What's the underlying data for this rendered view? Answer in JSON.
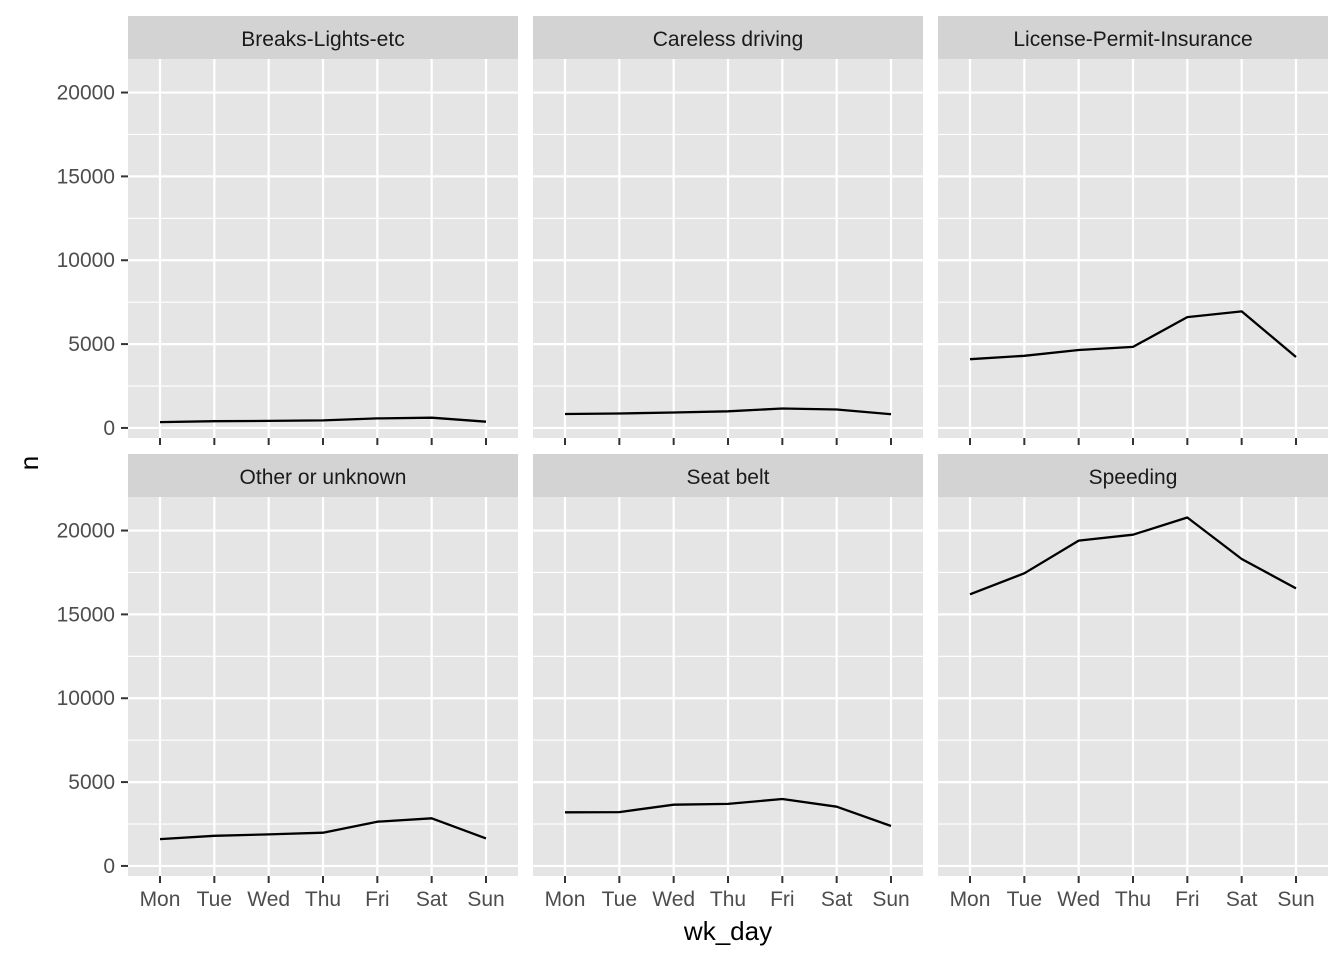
{
  "chart_data": {
    "type": "line",
    "facet": "wrap",
    "xlabel": "wk_day",
    "ylabel": "n",
    "categories": [
      "Mon",
      "Tue",
      "Wed",
      "Thu",
      "Fri",
      "Sat",
      "Sun"
    ],
    "ylim": [
      -600,
      22000
    ],
    "yticks": [
      0,
      5000,
      10000,
      15000,
      20000
    ],
    "yticks_labels": [
      "0",
      "5000",
      "10000",
      "15000",
      "20000"
    ],
    "grid": true,
    "colors": {
      "panel_background": "#e5e5e5",
      "strip_background": "#d3d3d3",
      "grid": "#ffffff",
      "line": "#000000"
    },
    "panels": [
      {
        "title": "Breaks-Lights-etc",
        "values": [
          350,
          400,
          420,
          450,
          570,
          610,
          370
        ]
      },
      {
        "title": "Careless driving",
        "values": [
          830,
          860,
          920,
          990,
          1160,
          1100,
          820
        ]
      },
      {
        "title": "License-Permit-Insurance",
        "values": [
          4100,
          4300,
          4650,
          4830,
          6610,
          6950,
          4230
        ]
      },
      {
        "title": "Other or unknown",
        "values": [
          1600,
          1800,
          1880,
          1980,
          2640,
          2840,
          1640
        ]
      },
      {
        "title": "Seat belt",
        "values": [
          3200,
          3210,
          3650,
          3700,
          3990,
          3530,
          2380
        ]
      },
      {
        "title": "Speeding",
        "values": [
          16200,
          17450,
          19400,
          19750,
          20780,
          18300,
          16550
        ]
      }
    ]
  }
}
